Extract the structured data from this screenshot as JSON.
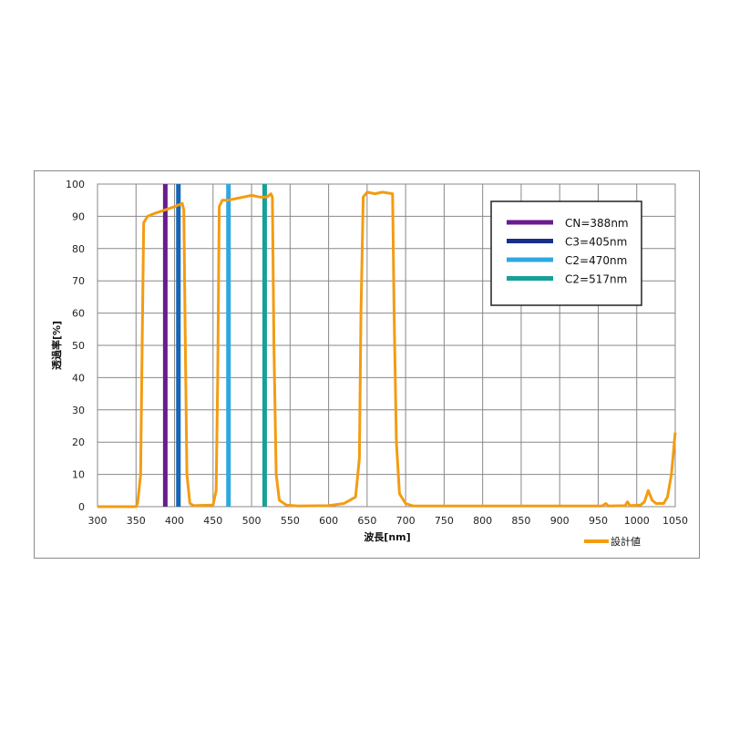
{
  "chart_data": {
    "type": "line",
    "title": "",
    "xlabel": "波長[nm]",
    "ylabel": "透過率[%]",
    "xlim": [
      300,
      1050
    ],
    "ylim": [
      0,
      100
    ],
    "xticks": [
      300,
      350,
      400,
      450,
      500,
      550,
      600,
      650,
      700,
      750,
      800,
      850,
      900,
      950,
      1000,
      1050
    ],
    "yticks": [
      0,
      10,
      20,
      30,
      40,
      50,
      60,
      70,
      80,
      90,
      100
    ],
    "grid": true,
    "series": [
      {
        "name": "設計値",
        "color": "#f39c12",
        "x": [
          300,
          350,
          352,
          356,
          358,
          360,
          365,
          375,
          388,
          400,
          405,
          410,
          412,
          414,
          416,
          420,
          425,
          450,
          454,
          456,
          458,
          462,
          470,
          480,
          490,
          500,
          510,
          520,
          525,
          527,
          529,
          532,
          536,
          545,
          560,
          600,
          620,
          635,
          640,
          642,
          645,
          650,
          660,
          670,
          683,
          685,
          688,
          692,
          700,
          710,
          955,
          960,
          963,
          985,
          988,
          991,
          1005,
          1010,
          1015,
          1020,
          1025,
          1035,
          1040,
          1045,
          1050
        ],
        "y": [
          0,
          0,
          1,
          10,
          50,
          88,
          90,
          91,
          92,
          93,
          93.5,
          94,
          92,
          50,
          10,
          1,
          0.3,
          0.5,
          5,
          40,
          93,
          95,
          95,
          95.5,
          96,
          96.5,
          96,
          96,
          97,
          96,
          50,
          10,
          2,
          0.5,
          0.2,
          0.3,
          1,
          3,
          15,
          60,
          96,
          97.5,
          97,
          97.5,
          97,
          60,
          20,
          4,
          1,
          0.2,
          0.2,
          1,
          0.2,
          0.3,
          1.5,
          0.3,
          0.5,
          1.5,
          5,
          2,
          1,
          1,
          3,
          10,
          23
        ]
      }
    ],
    "markers": [
      {
        "name": "CN=388nm",
        "x": 388,
        "color": "#6a1b8f"
      },
      {
        "name": "C3=405nm",
        "x": 405,
        "color": "#1a2f8a",
        "line_color": "#1565b8"
      },
      {
        "name": "C2=470nm",
        "x": 470,
        "color": "#2ea8e0"
      },
      {
        "name": "C2=517nm",
        "x": 517,
        "color": "#16a09a"
      }
    ],
    "legend_placement": "top-right (markers), bottom-right (series)"
  }
}
